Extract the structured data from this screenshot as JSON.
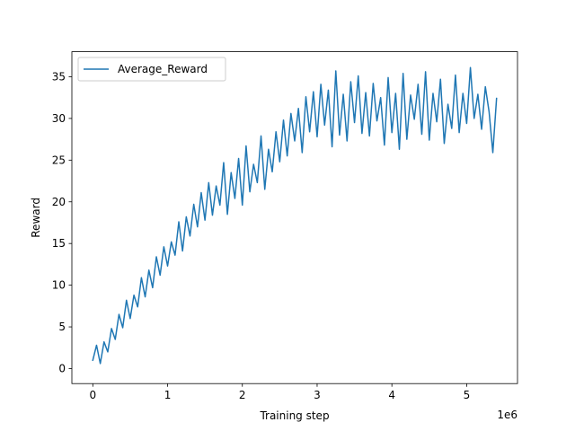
{
  "chart_data": {
    "type": "line",
    "title": "",
    "xlabel": "Training step",
    "ylabel": "Reward",
    "x_offset_label": "1e6",
    "xlim": [
      -280000,
      5680000
    ],
    "ylim": [
      -1.8,
      38
    ],
    "x_ticks": [
      0,
      1000000,
      2000000,
      3000000,
      4000000,
      5000000
    ],
    "x_tick_labels": [
      "0",
      "1",
      "2",
      "3",
      "4",
      "5"
    ],
    "y_ticks": [
      0,
      5,
      10,
      15,
      20,
      25,
      30,
      35
    ],
    "y_tick_labels": [
      "0",
      "5",
      "10",
      "15",
      "20",
      "25",
      "30",
      "35"
    ],
    "grid": false,
    "legend": {
      "placement": "top-left"
    },
    "colors": {
      "series": "#1f77b4"
    },
    "series": [
      {
        "name": "Average_Reward",
        "x": [
          0,
          50000,
          100000,
          150000,
          200000,
          250000,
          300000,
          350000,
          400000,
          450000,
          500000,
          550000,
          600000,
          650000,
          700000,
          750000,
          800000,
          850000,
          900000,
          950000,
          1000000,
          1050000,
          1100000,
          1150000,
          1200000,
          1250000,
          1300000,
          1350000,
          1400000,
          1450000,
          1500000,
          1550000,
          1600000,
          1650000,
          1700000,
          1750000,
          1800000,
          1850000,
          1900000,
          1950000,
          2000000,
          2050000,
          2100000,
          2150000,
          2200000,
          2250000,
          2300000,
          2350000,
          2400000,
          2450000,
          2500000,
          2550000,
          2600000,
          2650000,
          2700000,
          2750000,
          2800000,
          2850000,
          2900000,
          2950000,
          3000000,
          3050000,
          3100000,
          3150000,
          3200000,
          3250000,
          3300000,
          3350000,
          3400000,
          3450000,
          3500000,
          3550000,
          3600000,
          3650000,
          3700000,
          3750000,
          3800000,
          3850000,
          3900000,
          3950000,
          4000000,
          4050000,
          4100000,
          4150000,
          4200000,
          4250000,
          4300000,
          4350000,
          4400000,
          4450000,
          4500000,
          4550000,
          4600000,
          4650000,
          4700000,
          4750000,
          4800000,
          4850000,
          4900000,
          4950000,
          5000000,
          5050000,
          5100000,
          5150000,
          5200000,
          5250000,
          5300000,
          5350000,
          5400000
        ],
        "y": [
          1.0,
          2.8,
          0.6,
          3.2,
          2.0,
          4.8,
          3.5,
          6.5,
          4.9,
          8.2,
          6.0,
          8.8,
          7.4,
          10.9,
          8.6,
          11.8,
          9.7,
          13.4,
          11.2,
          14.6,
          12.3,
          15.2,
          13.6,
          17.6,
          14.1,
          18.2,
          15.9,
          19.7,
          17.0,
          21.1,
          17.8,
          22.3,
          18.4,
          21.9,
          19.6,
          24.7,
          18.5,
          23.5,
          20.4,
          25.2,
          19.6,
          26.7,
          21.2,
          24.5,
          22.3,
          27.9,
          21.5,
          26.3,
          23.6,
          28.4,
          24.8,
          29.8,
          25.5,
          30.6,
          27.3,
          31.2,
          25.9,
          32.6,
          28.4,
          33.2,
          27.8,
          34.1,
          29.2,
          33.4,
          26.6,
          35.7,
          28.0,
          32.9,
          27.3,
          34.4,
          29.5,
          35.1,
          28.2,
          33.1,
          27.9,
          34.2,
          29.7,
          32.5,
          26.8,
          34.9,
          28.3,
          33.0,
          26.3,
          35.4,
          27.5,
          32.8,
          29.9,
          34.1,
          28.1,
          35.6,
          27.4,
          33.0,
          29.6,
          34.7,
          27.0,
          31.7,
          28.8,
          35.2,
          28.3,
          33.0,
          29.4,
          36.1,
          30.0,
          32.9,
          28.7,
          33.8,
          30.8,
          25.9,
          32.4
        ]
      }
    ]
  }
}
